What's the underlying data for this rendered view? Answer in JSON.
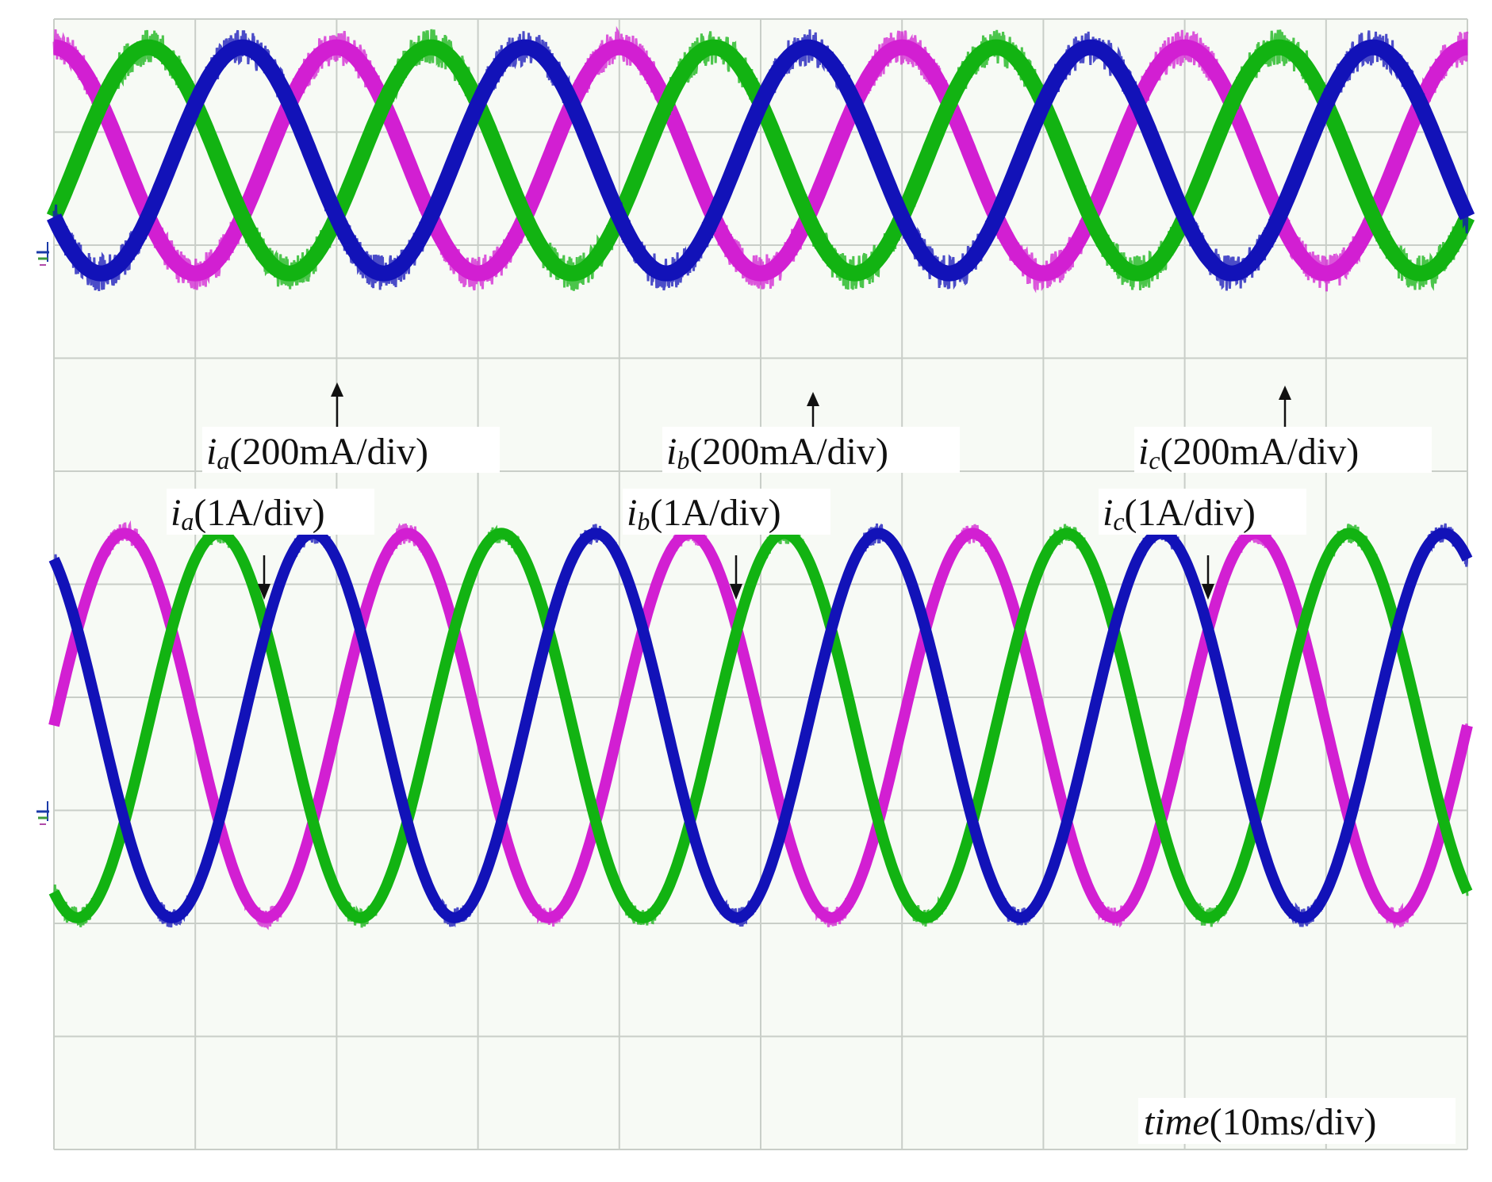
{
  "colors": {
    "background": "#f7faf5",
    "grid": "#c9cec8",
    "phase_a": "#d21fd2",
    "phase_b": "#12b312",
    "phase_c": "#1212b8",
    "text": "#111111"
  },
  "chart_data": {
    "type": "line",
    "grid": true,
    "grid_divisions": {
      "x": 10,
      "y": 10
    },
    "xlabel": {
      "var": "time",
      "unit": "(10ms/div)"
    },
    "xlim_div": [
      0,
      10
    ],
    "period_div": 2.0,
    "panels": [
      {
        "id": "top",
        "zero_ref_div": 8.75,
        "amplitude_div": 1.0,
        "noise": 0.16,
        "series": [
          {
            "name": "i_a",
            "color_key": "phase_a",
            "phase_deg": 90,
            "noise": 0.16
          },
          {
            "name": "i_b",
            "color_key": "phase_b",
            "phase_deg": -30,
            "noise": 0.16
          },
          {
            "name": "i_c",
            "color_key": "phase_c",
            "phase_deg": 210,
            "noise": 0.16
          }
        ],
        "labels": [
          {
            "var": "i",
            "sub": "a",
            "unit": "(200mA/div)"
          },
          {
            "var": "i",
            "sub": "b",
            "unit": "(200mA/div)"
          },
          {
            "var": "i",
            "sub": "c",
            "unit": "(200mA/div)"
          }
        ]
      },
      {
        "id": "bottom",
        "zero_ref_div": 3.75,
        "amplitude_div": 1.7,
        "noise": 0.09,
        "series": [
          {
            "name": "i_a",
            "color_key": "phase_a",
            "phase_deg": 0,
            "noise": 0.09
          },
          {
            "name": "i_b",
            "color_key": "phase_b",
            "phase_deg": 240,
            "noise": 0.09
          },
          {
            "name": "i_c",
            "color_key": "phase_c",
            "phase_deg": 120,
            "noise": 0.09
          }
        ],
        "labels": [
          {
            "var": "i",
            "sub": "a",
            "unit": "(1A/div)"
          },
          {
            "var": "i",
            "sub": "b",
            "unit": "(1A/div)"
          },
          {
            "var": "i",
            "sub": "c",
            "unit": "(1A/div)"
          }
        ]
      }
    ]
  }
}
